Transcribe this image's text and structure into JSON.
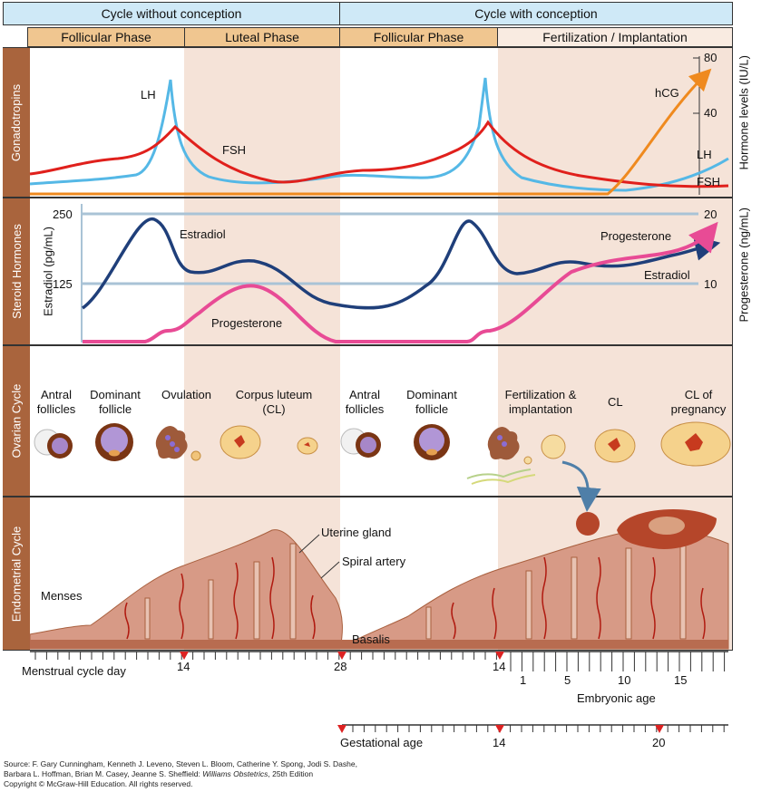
{
  "header": {
    "cycle_without": "Cycle without conception",
    "cycle_with": "Cycle with conception",
    "follicular1": "Follicular Phase",
    "luteal": "Luteal Phase",
    "follicular2": "Follicular Phase",
    "fert": "Fertilization / Implantation"
  },
  "panels": {
    "gonadotropins": "Gonadotropins",
    "steroid": "Steroid Hormones",
    "ovarian": "Ovarian Cycle",
    "endometrial": "Endometrial Cycle"
  },
  "gonad": {
    "lh1": "LH",
    "fsh1": "FSH",
    "hcg": "hCG",
    "lh2": "LH",
    "fsh2": "FSH",
    "tick80": "80",
    "tick40": "40",
    "axis": "Hormone levels (IU/L)"
  },
  "steroid": {
    "tick250": "250",
    "tick125": "125",
    "left_axis": "Estradiol (pg/mL)",
    "estradiol1": "Estradiol",
    "progesterone1": "Progesterone",
    "progesterone2": "Progesterone",
    "estradiol2": "Estradiol",
    "tick20": "20",
    "tick10": "10",
    "right_axis": "Progesterone (ng/mL)"
  },
  "ovarian": {
    "antral1": "Antral follicles",
    "dominant1": "Dominant follicle",
    "ovulation": "Ovulation",
    "cl1": "Corpus luteum (CL)",
    "antral2": "Antral follicles",
    "dominant2": "Dominant follicle",
    "fert": "Fertilization & implantation",
    "cl2": "CL",
    "clp": "CL of pregnancy"
  },
  "endometrial": {
    "uterine_gland": "Uterine gland",
    "spiral_artery": "Spiral artery",
    "menses": "Menses",
    "basalis": "Basalis"
  },
  "axes": {
    "menstrual": "Menstrual cycle day",
    "d14": "14",
    "d28": "28",
    "d14b": "14",
    "e1": "1",
    "e5": "5",
    "e10": "10",
    "e15": "15",
    "embryonic": "Embryonic age",
    "gestational": "Gestational age",
    "g14": "14",
    "g20": "20"
  },
  "source": {
    "line1": "Source: F. Gary Cunningham, Kenneth J. Leveno, Steven L. Bloom, Catherine Y. Spong, Jodi S. Dashe,",
    "line2a": "Barbara L. Hoffman, Brian M. Casey, Jeanne S. Sheffield: ",
    "line2b": "Williams Obstetrics",
    "line2c": ", 25th Edition",
    "line3": "Copyright © McGraw-Hill Education.  All rights reserved."
  },
  "colors": {
    "lh": "#55b8e6",
    "fsh": "#e0201c",
    "hcg": "#ef8a1f",
    "estradiol": "#1f3f7a",
    "progesterone": "#e84b95",
    "band": "#f5e3d8",
    "header": "#cfe9f7",
    "sub": "#f0c690",
    "sidebar": "#a9643d"
  }
}
